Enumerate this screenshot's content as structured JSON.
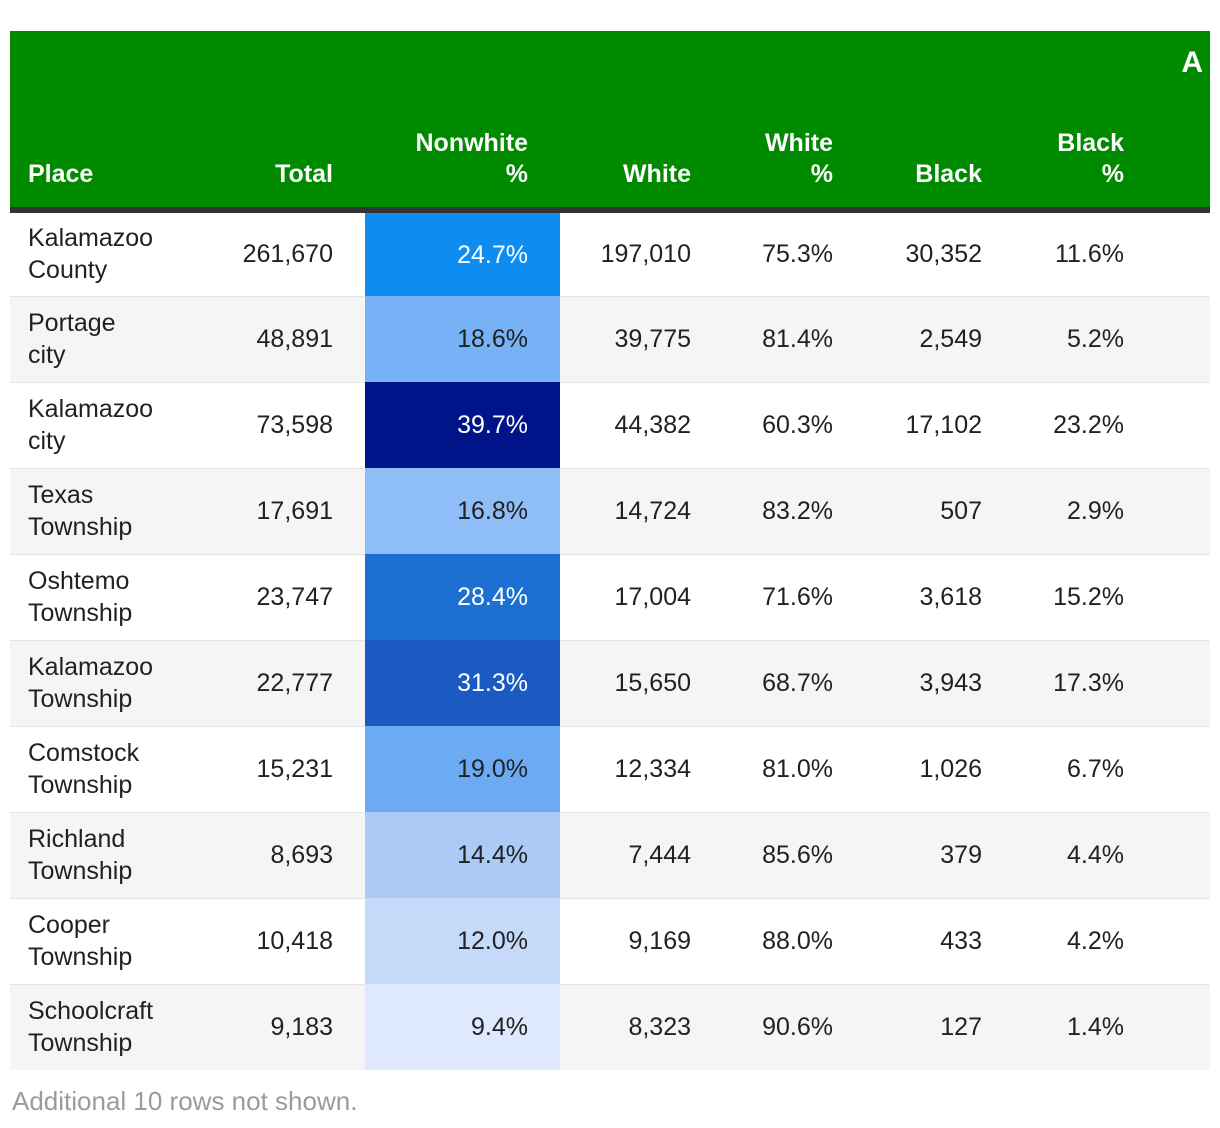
{
  "header": {
    "corner_text": "A",
    "bg_color": "#008a00",
    "text_color": "#ffffff",
    "bottom_border_color": "#333333"
  },
  "footer": {
    "note": "Additional 10 rows not shown."
  },
  "colors": {
    "row_stripe": "#f5f5f6",
    "body_text": "#212121",
    "footer_text": "#9b9b9b",
    "heat_scale_low": "#dfe9fd",
    "heat_scale_high": "#001489"
  },
  "chart_data": {
    "type": "table",
    "title": "",
    "columns": [
      {
        "id": "place",
        "lines": [
          "Place"
        ]
      },
      {
        "id": "total",
        "lines": [
          "Total"
        ]
      },
      {
        "id": "nonwhite_pct",
        "lines": [
          "Nonwhite",
          "%"
        ]
      },
      {
        "id": "white",
        "lines": [
          "White"
        ]
      },
      {
        "id": "white_pct",
        "lines": [
          "White",
          "%"
        ]
      },
      {
        "id": "black",
        "lines": [
          "Black"
        ]
      },
      {
        "id": "black_pct",
        "lines": [
          "Black",
          "%"
        ]
      }
    ],
    "rows": [
      {
        "place_lines": [
          "Kalamazoo",
          "County"
        ],
        "total": "261,670",
        "nonwhite_pct": "24.7%",
        "white": "197,010",
        "white_pct": "75.3%",
        "black": "30,352",
        "black_pct": "11.6%",
        "nonwhite_bg": "#0d8df2",
        "nonwhite_text": "#ffffff"
      },
      {
        "place_lines": [
          "Portage",
          "city"
        ],
        "total": "48,891",
        "nonwhite_pct": "18.6%",
        "white": "39,775",
        "white_pct": "81.4%",
        "black": "2,549",
        "black_pct": "5.2%",
        "nonwhite_bg": "#77b2f7",
        "nonwhite_text": "#212121"
      },
      {
        "place_lines": [
          "Kalamazoo",
          "city"
        ],
        "total": "73,598",
        "nonwhite_pct": "39.7%",
        "white": "44,382",
        "white_pct": "60.3%",
        "black": "17,102",
        "black_pct": "23.2%",
        "nonwhite_bg": "#001489",
        "nonwhite_text": "#ffffff"
      },
      {
        "place_lines": [
          "Texas",
          "Township"
        ],
        "total": "17,691",
        "nonwhite_pct": "16.8%",
        "white": "14,724",
        "white_pct": "83.2%",
        "black": "507",
        "black_pct": "2.9%",
        "nonwhite_bg": "#8fbdf7",
        "nonwhite_text": "#212121"
      },
      {
        "place_lines": [
          "Oshtemo",
          "Township"
        ],
        "total": "23,747",
        "nonwhite_pct": "28.4%",
        "white": "17,004",
        "white_pct": "71.6%",
        "black": "3,618",
        "black_pct": "15.2%",
        "nonwhite_bg": "#1d70d2",
        "nonwhite_text": "#ffffff"
      },
      {
        "place_lines": [
          "Kalamazoo",
          "Township"
        ],
        "total": "22,777",
        "nonwhite_pct": "31.3%",
        "white": "15,650",
        "white_pct": "68.7%",
        "black": "3,943",
        "black_pct": "17.3%",
        "nonwhite_bg": "#1b5ac2",
        "nonwhite_text": "#ffffff"
      },
      {
        "place_lines": [
          "Comstock",
          "Township"
        ],
        "total": "15,231",
        "nonwhite_pct": "19.0%",
        "white": "12,334",
        "white_pct": "81.0%",
        "black": "1,026",
        "black_pct": "6.7%",
        "nonwhite_bg": "#6cabf3",
        "nonwhite_text": "#212121"
      },
      {
        "place_lines": [
          "Richland",
          "Township"
        ],
        "total": "8,693",
        "nonwhite_pct": "14.4%",
        "white": "7,444",
        "white_pct": "85.6%",
        "black": "379",
        "black_pct": "4.4%",
        "nonwhite_bg": "#abcaf6",
        "nonwhite_text": "#212121"
      },
      {
        "place_lines": [
          "Cooper",
          "Township"
        ],
        "total": "10,418",
        "nonwhite_pct": "12.0%",
        "white": "9,169",
        "white_pct": "88.0%",
        "black": "433",
        "black_pct": "4.2%",
        "nonwhite_bg": "#c5daf9",
        "nonwhite_text": "#212121"
      },
      {
        "place_lines": [
          "Schoolcraft",
          "Township"
        ],
        "total": "9,183",
        "nonwhite_pct": "9.4%",
        "white": "8,323",
        "white_pct": "90.6%",
        "black": "127",
        "black_pct": "1.4%",
        "nonwhite_bg": "#dfe9fd",
        "nonwhite_text": "#212121"
      }
    ]
  }
}
